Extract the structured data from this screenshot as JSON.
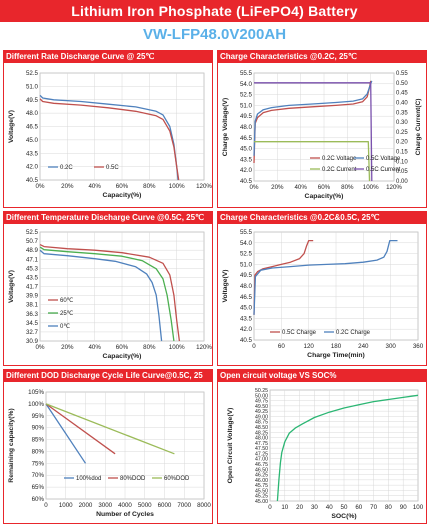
{
  "header": {
    "title": "Lithium Iron Phosphate (LiFePO4) Battery",
    "model": "VW-LFP48.0V200AH"
  },
  "chart_data": [
    {
      "id": "p1",
      "type": "line",
      "title": "Different Rate Discharge Curve @ 25℃",
      "xlabel": "Capacity(%)",
      "ylabel": "Voltage(V)",
      "xlim": [
        0,
        120
      ],
      "xticks": [
        "0%",
        "20%",
        "40%",
        "60%",
        "80%",
        "100%",
        "120%"
      ],
      "xtick_vals": [
        0,
        20,
        40,
        60,
        80,
        100,
        120
      ],
      "ylim": [
        40.5,
        52.5
      ],
      "yticks": [
        "52.5",
        "51.0",
        "49.5",
        "48.0",
        "46.5",
        "45.0",
        "43.5",
        "42.0",
        "40.5"
      ],
      "ytick_vals": [
        52.5,
        51.0,
        49.5,
        48.0,
        46.5,
        45.0,
        43.5,
        42.0,
        40.5
      ],
      "legend_position": "bottom-left",
      "series": [
        {
          "name": "0.2C",
          "color": "#4f81bd",
          "x": [
            0,
            2,
            10,
            30,
            50,
            70,
            85,
            90,
            95,
            98,
            100,
            101
          ],
          "y": [
            50.0,
            49.7,
            49.5,
            49.3,
            49.0,
            48.7,
            48.2,
            47.8,
            46.5,
            44.5,
            42.0,
            40.5
          ]
        },
        {
          "name": "0.5C",
          "color": "#c0504d",
          "x": [
            0,
            2,
            10,
            30,
            50,
            70,
            85,
            90,
            95,
            98,
            100,
            101.5
          ],
          "y": [
            49.6,
            49.3,
            49.1,
            48.9,
            48.6,
            48.2,
            47.7,
            47.3,
            46.0,
            44.2,
            42.0,
            40.5
          ]
        }
      ]
    },
    {
      "id": "p2",
      "type": "line",
      "title": "Charge Characteristics @0.2C, 25℃",
      "xlabel": "Capacity(%)",
      "ylabel": "Charge Voltage(V)",
      "y2label": "Charge Current(C)",
      "xlim": [
        0,
        120
      ],
      "xticks": [
        "0%",
        "20%",
        "40%",
        "60%",
        "80%",
        "100%",
        "120%"
      ],
      "xtick_vals": [
        0,
        20,
        40,
        60,
        80,
        100,
        120
      ],
      "ylim": [
        40.5,
        55.5
      ],
      "yticks": [
        "55.5",
        "54.0",
        "52.5",
        "51.0",
        "49.5",
        "48.0",
        "46.5",
        "45.0",
        "43.5",
        "42.0",
        "40.5"
      ],
      "ytick_vals": [
        55.5,
        54.0,
        52.5,
        51.0,
        49.5,
        48.0,
        46.5,
        45.0,
        43.5,
        42.0,
        40.5
      ],
      "y2lim": [
        0,
        0.55
      ],
      "y2ticks": [
        "0.55",
        "0.50",
        "0.45",
        "0.40",
        "0.35",
        "0.30",
        "0.25",
        "0.20",
        "0.15",
        "0.10",
        "0.05",
        "0.00"
      ],
      "y2tick_vals": [
        0.55,
        0.5,
        0.45,
        0.4,
        0.35,
        0.3,
        0.25,
        0.2,
        0.15,
        0.1,
        0.05,
        0.0
      ],
      "legend_position": "bottom-right",
      "series": [
        {
          "name": "0.2C Voltage",
          "color": "#c0504d",
          "axis": "left",
          "x": [
            0,
            1,
            3,
            8,
            15,
            30,
            50,
            70,
            85,
            93,
            97,
            99,
            100
          ],
          "y": [
            43.0,
            48.5,
            49.3,
            50.0,
            50.3,
            50.6,
            50.8,
            51.0,
            51.2,
            51.5,
            52.2,
            53.5,
            54.4
          ]
        },
        {
          "name": "0.5C Voltage",
          "color": "#4f81bd",
          "axis": "left",
          "x": [
            0,
            1,
            3,
            8,
            15,
            30,
            50,
            70,
            85,
            93,
            97,
            100,
            101
          ],
          "y": [
            44.0,
            48.8,
            49.8,
            50.4,
            50.7,
            51.0,
            51.2,
            51.4,
            51.6,
            51.9,
            52.6,
            54.0,
            54.4
          ]
        },
        {
          "name": "0.2C Current",
          "color": "#9bbb59",
          "axis": "right",
          "x": [
            0,
            98,
            99
          ],
          "y": [
            0.2,
            0.2,
            0.0
          ]
        },
        {
          "name": "0.5C Current",
          "color": "#7b52ae",
          "axis": "right",
          "x": [
            0,
            100,
            101
          ],
          "y": [
            0.5,
            0.5,
            0.0
          ]
        }
      ]
    },
    {
      "id": "p3",
      "type": "line",
      "title": "Different Temperature Discharge Curve @0.5C, 25℃",
      "xlabel": "Capacity(%)",
      "ylabel": "Voltage(V)",
      "xlim": [
        0,
        120
      ],
      "xticks": [
        "0%",
        "20%",
        "40%",
        "60%",
        "80%",
        "100%",
        "120%"
      ],
      "xtick_vals": [
        0,
        20,
        40,
        60,
        80,
        100,
        120
      ],
      "ylim": [
        30.9,
        52.5
      ],
      "yticks": [
        "52.5",
        "50.7",
        "48.9",
        "47.1",
        "45.3",
        "43.5",
        "41.7",
        "39.9",
        "38.1",
        "36.3",
        "34.5",
        "32.7",
        "30.9"
      ],
      "ytick_vals": [
        52.5,
        50.7,
        48.9,
        47.1,
        45.3,
        43.5,
        41.7,
        39.9,
        38.1,
        36.3,
        34.5,
        32.7,
        30.9
      ],
      "legend_position": "left",
      "series": [
        {
          "name": "60℃",
          "color": "#c0504d",
          "x": [
            0,
            3,
            20,
            40,
            60,
            80,
            90,
            95,
            98,
            100,
            102
          ],
          "y": [
            50.0,
            49.6,
            49.2,
            48.9,
            48.4,
            47.5,
            46.3,
            44.0,
            40.0,
            35.0,
            30.9
          ]
        },
        {
          "name": "25℃",
          "color": "#4caf50",
          "x": [
            0,
            3,
            20,
            40,
            60,
            75,
            85,
            90,
            93,
            96,
            98
          ],
          "y": [
            49.5,
            49.0,
            48.6,
            48.2,
            47.7,
            46.8,
            45.2,
            43.2,
            40.0,
            35.0,
            30.9
          ]
        },
        {
          "name": "0℃",
          "color": "#4f81bd",
          "x": [
            0,
            3,
            20,
            40,
            55,
            70,
            78,
            82,
            85,
            87,
            89
          ],
          "y": [
            48.9,
            48.2,
            47.8,
            47.2,
            46.7,
            45.6,
            44.2,
            42.5,
            40.0,
            36.0,
            30.9
          ]
        }
      ]
    },
    {
      "id": "p4",
      "type": "line",
      "title": "Charge Characteristics @0.2C&0.5C, 25℃",
      "xlabel": "Charge Time(min)",
      "ylabel": "Voltage(V)",
      "xlim": [
        0,
        360
      ],
      "xticks": [
        "0",
        "60",
        "120",
        "180",
        "240",
        "300",
        "360"
      ],
      "xtick_vals": [
        0,
        60,
        120,
        180,
        240,
        300,
        360
      ],
      "ylim": [
        40.5,
        55.5
      ],
      "yticks": [
        "55.5",
        "54.0",
        "52.5",
        "51.0",
        "49.5",
        "48.0",
        "46.5",
        "45.0",
        "43.5",
        "42.0",
        "40.5"
      ],
      "ytick_vals": [
        55.5,
        54.0,
        52.5,
        51.0,
        49.5,
        48.0,
        46.5,
        45.0,
        43.5,
        42.0,
        40.5
      ],
      "legend_position": "bottom",
      "series": [
        {
          "name": "0.5C Charge",
          "color": "#c0504d",
          "x": [
            0,
            2,
            8,
            20,
            40,
            60,
            80,
            100,
            110,
            115,
            120,
            130
          ],
          "y": [
            44.0,
            49.5,
            50.0,
            50.4,
            50.7,
            51.0,
            51.3,
            51.8,
            52.5,
            53.5,
            54.3,
            54.3
          ]
        },
        {
          "name": "0.2C Charge",
          "color": "#4f81bd",
          "x": [
            0,
            3,
            15,
            40,
            80,
            120,
            160,
            200,
            240,
            270,
            285,
            292,
            298,
            305,
            315
          ],
          "y": [
            44.0,
            49.3,
            50.2,
            50.5,
            50.7,
            50.9,
            51.0,
            51.1,
            51.3,
            51.6,
            52.0,
            52.8,
            54.3,
            54.3,
            54.3
          ]
        }
      ]
    },
    {
      "id": "p5",
      "type": "line",
      "title": "Different DOD Discharge Cycle Life Curve@0.5C, 25",
      "xlabel": "Number of Cycles",
      "ylabel": "Remaining capacity(%)",
      "xlim": [
        0,
        8000
      ],
      "xticks": [
        "0",
        "1000",
        "2000",
        "3000",
        "4000",
        "5000",
        "6000",
        "7000",
        "8000"
      ],
      "xtick_vals": [
        0,
        1000,
        2000,
        3000,
        4000,
        5000,
        6000,
        7000,
        8000
      ],
      "ylim": [
        60,
        105
      ],
      "yticks": [
        "105%",
        "100%",
        "95%",
        "90%",
        "85%",
        "80%",
        "75%",
        "70%",
        "65%",
        "60%"
      ],
      "ytick_vals": [
        105,
        100,
        95,
        90,
        85,
        80,
        75,
        70,
        65,
        60
      ],
      "legend_position": "bottom",
      "series": [
        {
          "name": "100%dod",
          "color": "#4f81bd",
          "x": [
            0,
            2000
          ],
          "y": [
            100,
            75
          ]
        },
        {
          "name": "80%DOD",
          "color": "#c0504d",
          "x": [
            0,
            3500
          ],
          "y": [
            100,
            79
          ]
        },
        {
          "name": "60%DOD",
          "color": "#9bbb59",
          "x": [
            0,
            6500
          ],
          "y": [
            100,
            79
          ]
        }
      ]
    },
    {
      "id": "p6",
      "type": "line",
      "title": "Open circuit voltage VS SOC%",
      "xlabel": "SOC(%)",
      "ylabel": "Open Circuit Voltage(V)",
      "xlim": [
        0,
        100
      ],
      "xticks": [
        "0",
        "10",
        "20",
        "30",
        "40",
        "50",
        "60",
        "70",
        "80",
        "90",
        "100"
      ],
      "xtick_vals": [
        0,
        10,
        20,
        30,
        40,
        50,
        60,
        70,
        80,
        90,
        100
      ],
      "ylim": [
        45,
        50.25
      ],
      "yticks": [
        "50.25",
        "50.00",
        "49.75",
        "49.50",
        "49.25",
        "49.00",
        "48.75",
        "48.50",
        "48.25",
        "48.00",
        "47.75",
        "47.50",
        "47.25",
        "47.00",
        "46.75",
        "46.50",
        "46.25",
        "46.00",
        "45.75",
        "45.50",
        "45.25",
        "45.00"
      ],
      "ytick_vals": [
        50.25,
        50.0,
        49.75,
        49.5,
        49.25,
        49.0,
        48.75,
        48.5,
        48.25,
        48.0,
        47.75,
        47.5,
        47.25,
        47.0,
        46.75,
        46.5,
        46.25,
        46.0,
        45.75,
        45.5,
        45.25,
        45.0
      ],
      "legend_position": "none",
      "series": [
        {
          "color": "#2bb673",
          "x": [
            5,
            6,
            7,
            8,
            10,
            13,
            17,
            22,
            30,
            40,
            50,
            60,
            70,
            80,
            90,
            100
          ],
          "y": [
            45.0,
            46.0,
            46.8,
            47.3,
            47.8,
            48.2,
            48.45,
            48.65,
            48.95,
            49.2,
            49.4,
            49.55,
            49.7,
            49.8,
            49.9,
            50.0
          ]
        }
      ]
    }
  ]
}
